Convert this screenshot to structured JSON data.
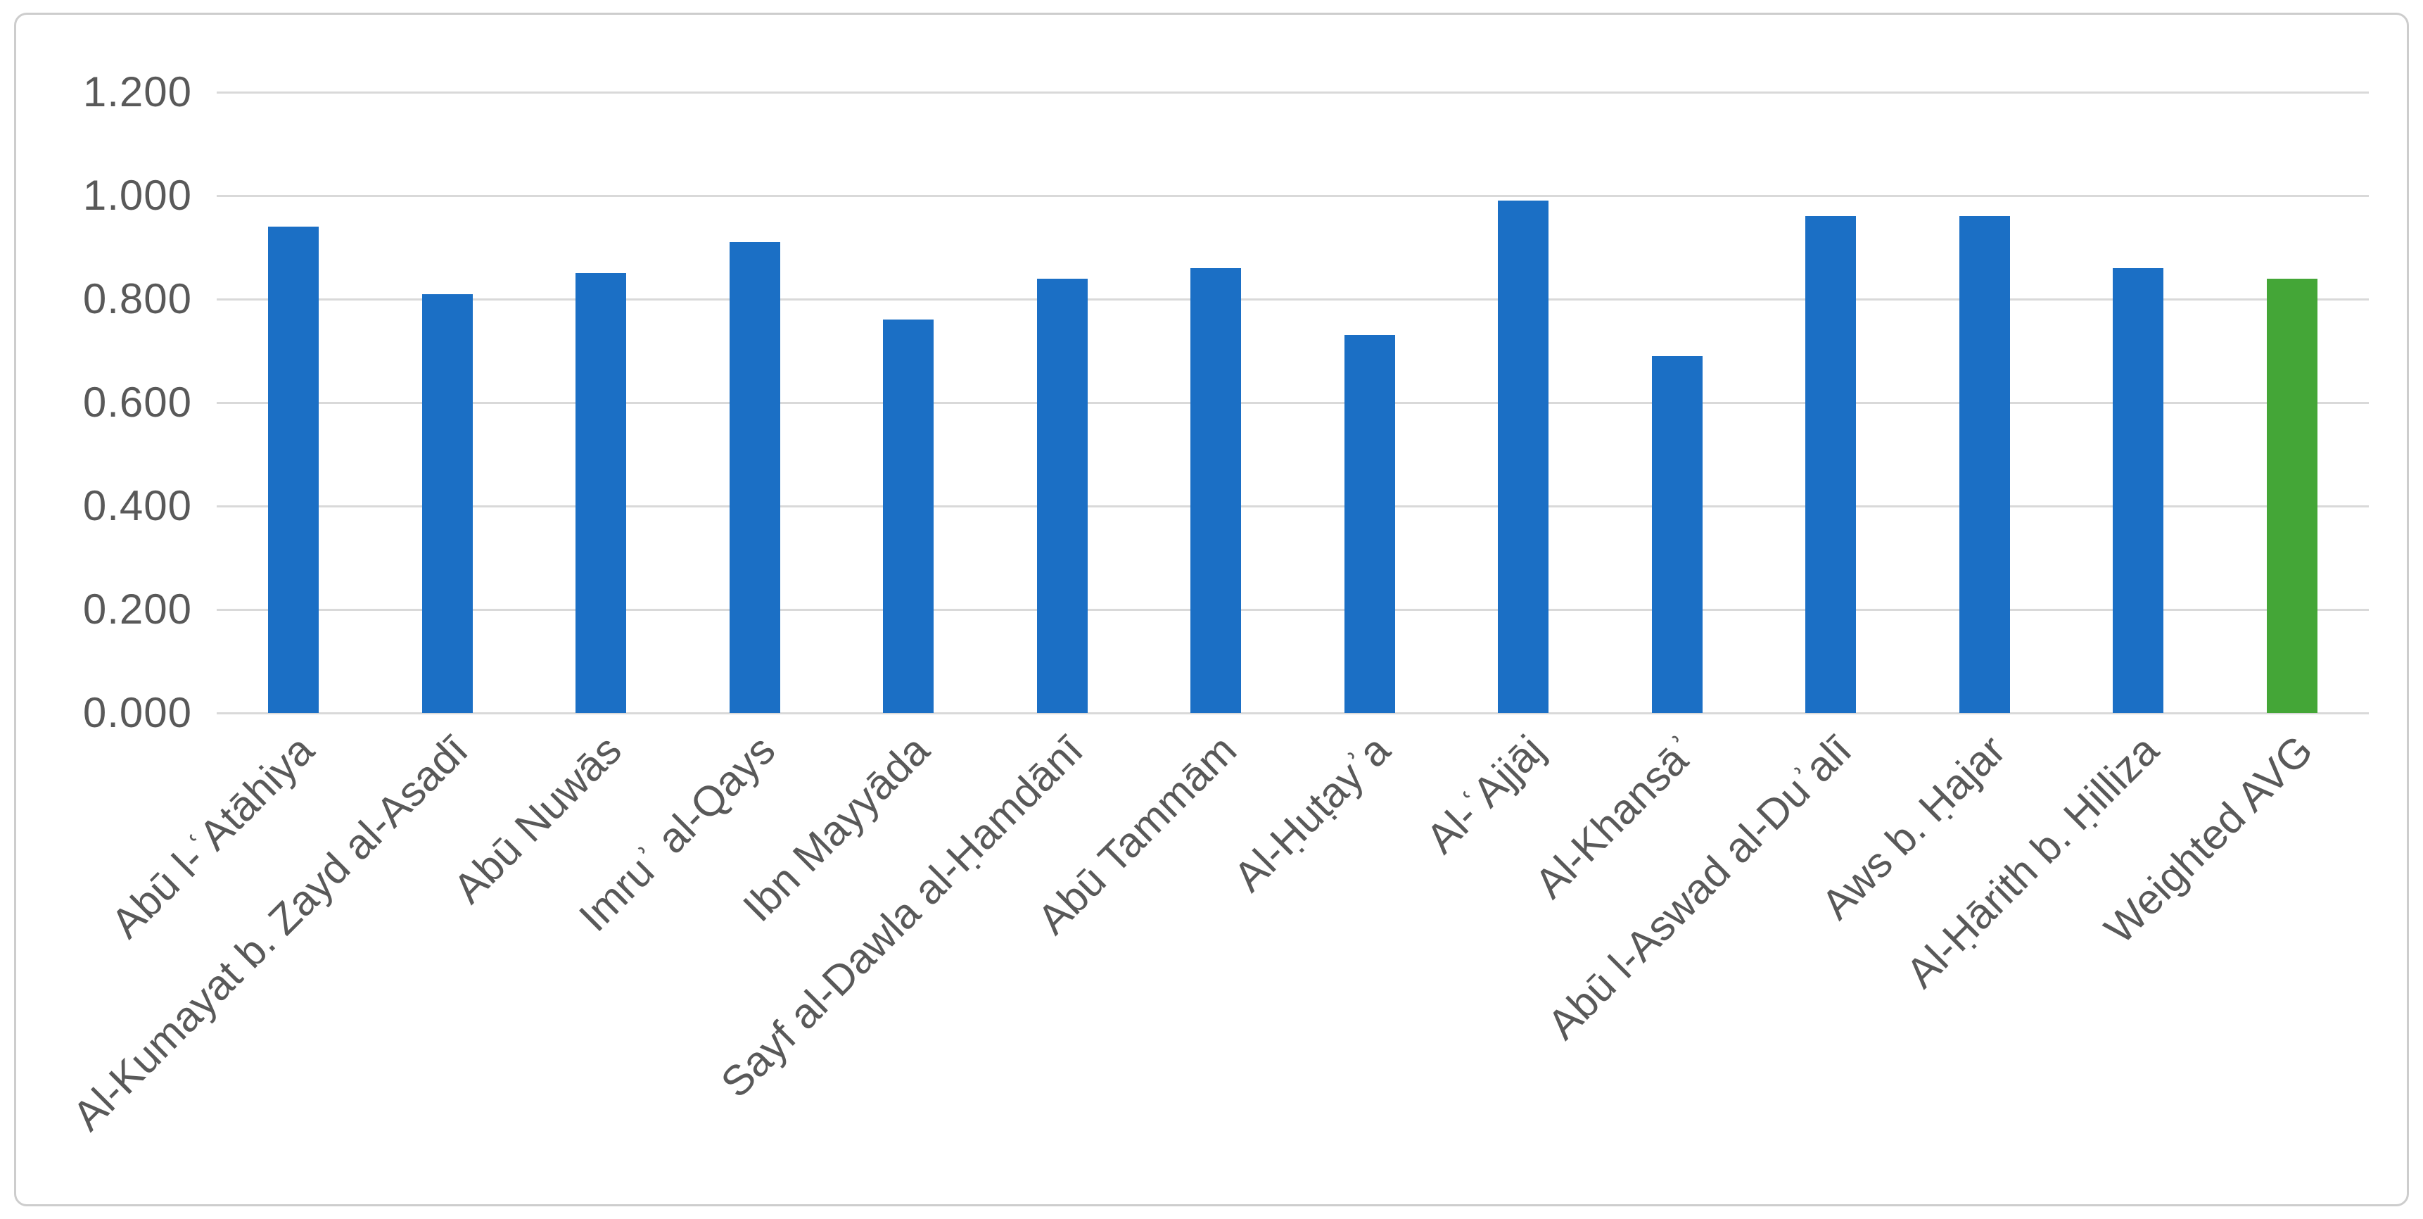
{
  "chart_data": {
    "type": "bar",
    "title": "",
    "xlabel": "",
    "ylabel": "",
    "categories": [
      "Abū l-ʿAtāhiya",
      "Al-Kumayat b. Zayd al-Asadī",
      "Abū Nuwās",
      "Imruʾ al-Qays",
      "Ibn Mayyāda",
      "Sayf al-Dawla al-Ḥamdānī",
      "Abū Tammām",
      "Al-Ḥuṭayʾa",
      "Al-ʿAjjāj",
      "Al-Khansāʾ",
      "Abū l-Aswad al-Duʾalī",
      "Aws b. Ḥajar",
      "Al-Ḥārith b. Ḥilliza",
      "Weighted AVG"
    ],
    "values": [
      0.94,
      0.81,
      0.85,
      0.91,
      0.76,
      0.84,
      0.86,
      0.73,
      0.99,
      0.69,
      0.96,
      0.96,
      0.86,
      0.84
    ],
    "highlight_index": 13,
    "ylim": [
      0,
      1.2
    ],
    "ytick_step": 0.2,
    "ytick_labels": [
      "0.000",
      "0.200",
      "0.400",
      "0.600",
      "0.800",
      "1.000",
      "1.200"
    ],
    "grid": true,
    "legend": false,
    "x_label_rotation_deg": -45
  },
  "colors": {
    "bar_default": "#1b6fc5",
    "bar_highlight": "#44a637",
    "gridline": "#d9d9d9",
    "axis_text": "#595959",
    "frame_border": "#cdcdcd",
    "background": "#ffffff"
  }
}
